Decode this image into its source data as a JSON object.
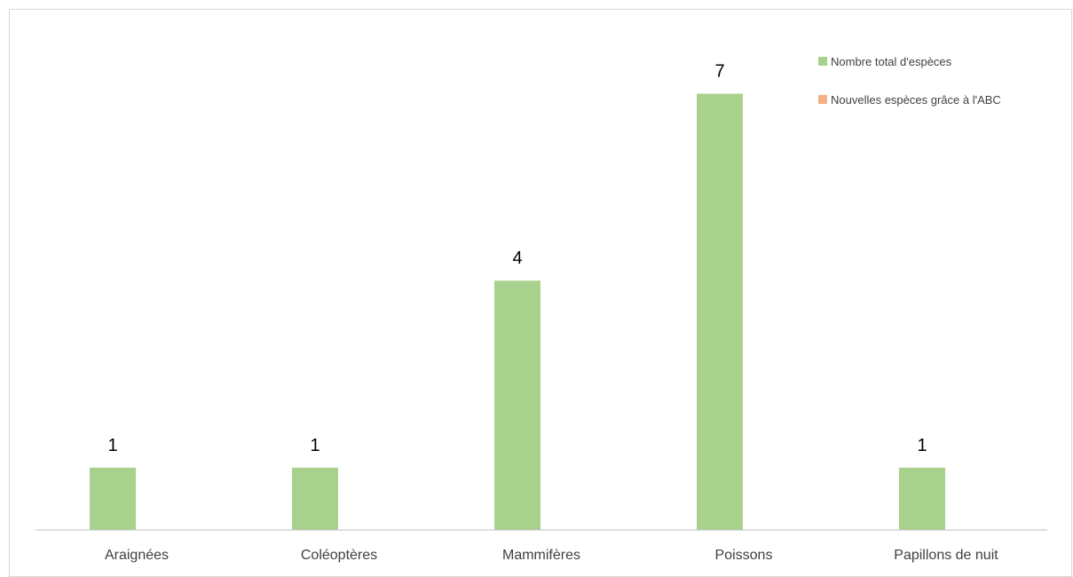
{
  "chart_data": {
    "type": "bar",
    "categories": [
      "Araignées",
      "Coléoptères",
      "Mammifères",
      "Poissons",
      "Papillons de nuit"
    ],
    "series": [
      {
        "name": "Nombre total d'espèces",
        "values": [
          1,
          1,
          4,
          7,
          1
        ],
        "color": "#a9d18e"
      },
      {
        "name": "Nouvelles espèces grâce à l'ABC",
        "values": [
          0,
          0,
          0,
          0,
          0
        ],
        "color": "#f4b183"
      }
    ],
    "data_labels": [
      "1",
      "1",
      "4",
      "7",
      "1"
    ],
    "ylim": [
      0,
      8
    ],
    "gridlines": false,
    "legend_position": "top-right",
    "axis_color": "#bfbfbf"
  }
}
